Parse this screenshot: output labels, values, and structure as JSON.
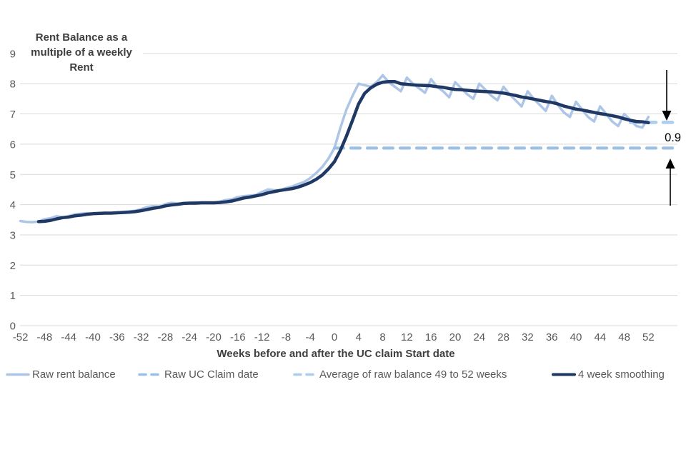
{
  "page": {
    "background": "#ffffff"
  },
  "chart_data": {
    "type": "line",
    "y_axis_title": "Rent Balance as a\nmultiple of a weekly\nRent",
    "x_axis_title": "Weeks before and after the UC claim Start date",
    "ylim": [
      0,
      9
    ],
    "y_ticks": [
      0,
      1,
      2,
      3,
      4,
      5,
      6,
      7,
      8,
      9
    ],
    "x_ticks": [
      -52,
      -48,
      -44,
      -40,
      -36,
      -32,
      -28,
      -24,
      -20,
      -16,
      -12,
      -8,
      -4,
      0,
      4,
      8,
      12,
      16,
      20,
      24,
      28,
      32,
      36,
      40,
      44,
      48,
      52
    ],
    "grid": "horizontal",
    "legend_position": "bottom",
    "annotation": {
      "label": "0.9"
    },
    "colors": {
      "raw": "#adc5e6",
      "claim_date": "#9cbfe6",
      "average_49_52": "#abcdee",
      "smoothing": "#1f3864",
      "gridline": "#d9d9d9",
      "tick_text": "#595959",
      "title_text": "#3f3f3f"
    },
    "series": [
      {
        "name": "Raw rent balance",
        "type": "line",
        "style": "solid",
        "color": "#adc5e6",
        "x_start": -52,
        "x_step": 1,
        "values": [
          3.46,
          3.43,
          3.42,
          3.44,
          3.52,
          3.55,
          3.62,
          3.58,
          3.62,
          3.68,
          3.7,
          3.72,
          3.7,
          3.72,
          3.73,
          3.72,
          3.74,
          3.76,
          3.78,
          3.8,
          3.85,
          3.92,
          3.95,
          3.93,
          4.02,
          4.06,
          4.04,
          4.03,
          4.06,
          4.08,
          4.06,
          4.05,
          4.06,
          4.1,
          4.15,
          4.18,
          4.25,
          4.28,
          4.3,
          4.32,
          4.42,
          4.5,
          4.48,
          4.47,
          4.55,
          4.6,
          4.68,
          4.75,
          4.88,
          5.05,
          5.25,
          5.52,
          5.87,
          6.55,
          7.15,
          7.6,
          8.0,
          7.95,
          7.9,
          8.05,
          8.28,
          8.05,
          7.9,
          7.75,
          8.2,
          8.0,
          7.85,
          7.7,
          8.15,
          7.9,
          7.75,
          7.55,
          8.05,
          7.85,
          7.65,
          7.5,
          8.0,
          7.8,
          7.6,
          7.45,
          7.9,
          7.65,
          7.45,
          7.25,
          7.75,
          7.5,
          7.3,
          7.1,
          7.6,
          7.3,
          7.05,
          6.9,
          7.4,
          7.15,
          6.9,
          6.75,
          7.25,
          7.0,
          6.75,
          6.6,
          7.0,
          6.8,
          6.6,
          6.55,
          6.9
        ]
      },
      {
        "name": "Raw UC Claim date",
        "type": "hline",
        "style": "dashed",
        "color": "#9cbfe6",
        "value": 5.87,
        "x_start": 0,
        "x_end": 56.8
      },
      {
        "name": "Average of raw balance 49 to 52 weeks",
        "type": "hline",
        "style": "dashed",
        "color": "#abcdee",
        "value": 6.72,
        "x_start": 49,
        "x_end": 56.8
      },
      {
        "name": "4 week smoothing",
        "type": "line",
        "style": "solid",
        "color": "#1f3864",
        "x_start": -49,
        "x_step": 1,
        "values": [
          3.44,
          3.45,
          3.48,
          3.53,
          3.57,
          3.59,
          3.63,
          3.65,
          3.68,
          3.7,
          3.71,
          3.72,
          3.72,
          3.73,
          3.74,
          3.75,
          3.77,
          3.8,
          3.84,
          3.88,
          3.91,
          3.96,
          3.99,
          4.01,
          4.04,
          4.05,
          4.05,
          4.06,
          4.06,
          4.06,
          4.07,
          4.09,
          4.12,
          4.17,
          4.22,
          4.25,
          4.29,
          4.33,
          4.39,
          4.43,
          4.47,
          4.5,
          4.53,
          4.58,
          4.65,
          4.73,
          4.84,
          4.98,
          5.18,
          5.42,
          5.8,
          6.27,
          6.79,
          7.33,
          7.68,
          7.86,
          7.98,
          8.05,
          8.07,
          8.07,
          8.0,
          7.98,
          7.96,
          7.95,
          7.94,
          7.93,
          7.9,
          7.88,
          7.84,
          7.81,
          7.8,
          7.78,
          7.76,
          7.75,
          7.74,
          7.73,
          7.71,
          7.69,
          7.65,
          7.61,
          7.56,
          7.53,
          7.49,
          7.45,
          7.41,
          7.38,
          7.33,
          7.26,
          7.21,
          7.16,
          7.13,
          7.09,
          7.05,
          7.01,
          6.98,
          6.94,
          6.9,
          6.84,
          6.79,
          6.75,
          6.74,
          6.71
        ]
      }
    ]
  }
}
